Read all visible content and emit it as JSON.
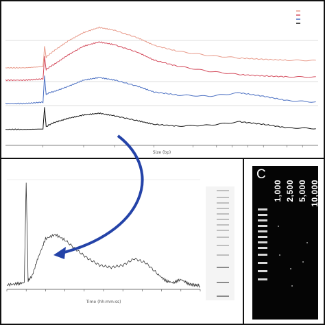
{
  "chart_data": [
    {
      "type": "line",
      "panel": "top electropherogram overlay",
      "title": "",
      "xlabel": "Size (bp)",
      "ylabel": "",
      "grid": false,
      "legend_position": "top-right",
      "series": [
        {
          "name": "",
          "color": "#e89a8a",
          "x": [
            0,
            25,
            48,
            50,
            52,
            55,
            62,
            80,
            100,
            120,
            140,
            170,
            190,
            220,
            260,
            300,
            330,
            360,
            400
          ],
          "y": [
            0.05,
            0.05,
            0.08,
            0.55,
            0.3,
            0.35,
            0.45,
            0.68,
            0.88,
            1.0,
            0.93,
            0.75,
            0.58,
            0.44,
            0.34,
            0.28,
            0.25,
            0.23,
            0.22
          ]
        },
        {
          "name": "",
          "color": "#d44b5c",
          "x": [
            0,
            25,
            48,
            50,
            52,
            55,
            62,
            80,
            100,
            120,
            140,
            170,
            190,
            220,
            260,
            300,
            330,
            360,
            400
          ],
          "y": [
            0.05,
            0.05,
            0.08,
            0.6,
            0.3,
            0.34,
            0.42,
            0.64,
            0.85,
            0.95,
            0.88,
            0.7,
            0.52,
            0.38,
            0.26,
            0.18,
            0.15,
            0.13,
            0.12
          ]
        },
        {
          "name": "",
          "color": "#4a6fc2",
          "x": [
            0,
            25,
            48,
            50,
            52,
            55,
            62,
            80,
            100,
            120,
            140,
            170,
            190,
            220,
            260,
            300,
            330,
            360,
            400
          ],
          "y": [
            0.05,
            0.05,
            0.08,
            0.7,
            0.25,
            0.3,
            0.33,
            0.45,
            0.6,
            0.66,
            0.6,
            0.45,
            0.32,
            0.25,
            0.22,
            0.3,
            0.22,
            0.12,
            0.08
          ]
        },
        {
          "name": "",
          "color": "#111111",
          "x": [
            0,
            25,
            48,
            50,
            52,
            55,
            62,
            80,
            100,
            120,
            140,
            170,
            190,
            220,
            260,
            300,
            330,
            360,
            400
          ],
          "y": [
            0.02,
            0.02,
            0.03,
            0.55,
            0.08,
            0.12,
            0.18,
            0.28,
            0.36,
            0.4,
            0.34,
            0.22,
            0.14,
            0.1,
            0.12,
            0.2,
            0.14,
            0.06,
            0.04
          ]
        }
      ],
      "xlim": [
        0,
        400
      ],
      "ylim": [
        0,
        1.1
      ]
    },
    {
      "type": "line",
      "panel": "zoomed electropherogram",
      "title": "",
      "xlabel": "Time (hh:mm:ss)",
      "ylabel": "",
      "grid": false,
      "series": [
        {
          "name": "",
          "color": "#333333",
          "x": [
            0,
            5,
            9,
            10,
            11,
            13,
            16,
            20,
            25,
            30,
            36,
            42,
            48,
            54,
            60,
            66,
            72,
            78,
            82,
            86,
            90,
            94,
            96,
            98,
            100
          ],
          "y": [
            0.04,
            0.05,
            0.06,
            0.98,
            0.08,
            0.12,
            0.28,
            0.46,
            0.5,
            0.45,
            0.36,
            0.28,
            0.22,
            0.2,
            0.22,
            0.28,
            0.24,
            0.14,
            0.08,
            0.06,
            0.09,
            0.05,
            0.04,
            0.04,
            0.03
          ]
        },
        {
          "name": "",
          "color": "#e58ca8",
          "x": [
            0,
            100
          ],
          "y": [
            0.015,
            0.015
          ]
        }
      ],
      "xlim": [
        0,
        100
      ],
      "ylim": [
        0,
        1.0
      ]
    }
  ],
  "gel": {
    "letter": "C",
    "lanes": [
      "1,000",
      "2,500",
      "5,000",
      "10,000"
    ]
  },
  "colors": {
    "arrow": "#2443a8",
    "frame": "#111111",
    "gel_background": "#050505"
  }
}
